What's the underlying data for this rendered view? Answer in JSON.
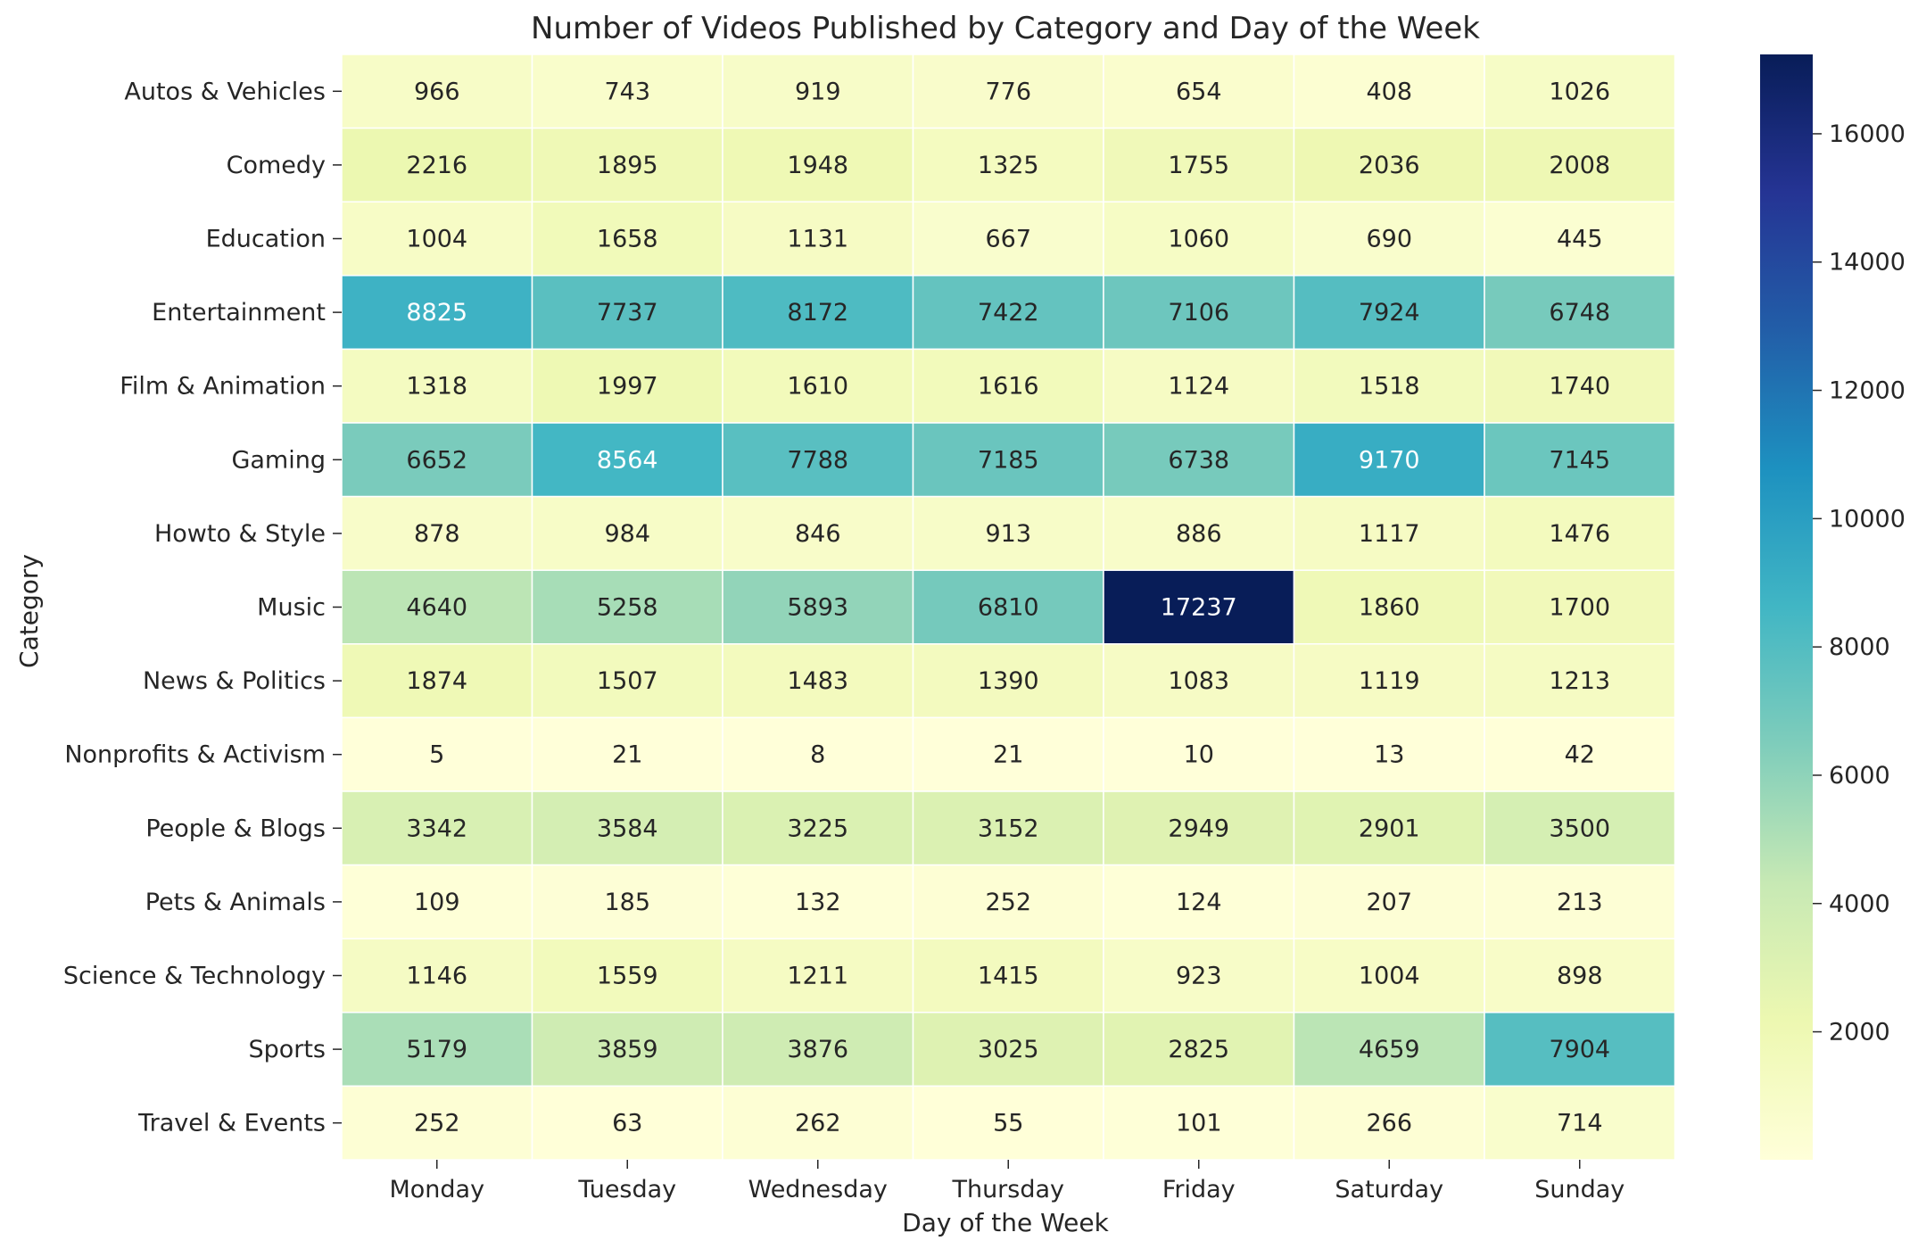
{
  "chart_data": {
    "type": "heatmap",
    "title": "Number of Videos Published by Category and Day of the Week",
    "xlabel": "Day of the Week",
    "ylabel": "Category",
    "x": [
      "Monday",
      "Tuesday",
      "Wednesday",
      "Thursday",
      "Friday",
      "Saturday",
      "Sunday"
    ],
    "y": [
      "Autos & Vehicles",
      "Comedy",
      "Education",
      "Entertainment",
      "Film & Animation",
      "Gaming",
      "Howto & Style",
      "Music",
      "News & Politics",
      "Nonprofits & Activism",
      "People & Blogs",
      "Pets & Animals",
      "Science & Technology",
      "Sports",
      "Travel & Events"
    ],
    "values": [
      [
        966,
        743,
        919,
        776,
        654,
        408,
        1026
      ],
      [
        2216,
        1895,
        1948,
        1325,
        1755,
        2036,
        2008
      ],
      [
        1004,
        1658,
        1131,
        667,
        1060,
        690,
        445
      ],
      [
        8825,
        7737,
        8172,
        7422,
        7106,
        7924,
        6748
      ],
      [
        1318,
        1997,
        1610,
        1616,
        1124,
        1518,
        1740
      ],
      [
        6652,
        8564,
        7788,
        7185,
        6738,
        9170,
        7145
      ],
      [
        878,
        984,
        846,
        913,
        886,
        1117,
        1476
      ],
      [
        4640,
        5258,
        5893,
        6810,
        17237,
        1860,
        1700
      ],
      [
        1874,
        1507,
        1483,
        1390,
        1083,
        1119,
        1213
      ],
      [
        5,
        21,
        8,
        21,
        10,
        13,
        42
      ],
      [
        3342,
        3584,
        3225,
        3152,
        2949,
        2901,
        3500
      ],
      [
        109,
        185,
        132,
        252,
        124,
        207,
        213
      ],
      [
        1146,
        1559,
        1211,
        1415,
        923,
        1004,
        898
      ],
      [
        5179,
        3859,
        3876,
        3025,
        2825,
        4659,
        7904
      ],
      [
        252,
        63,
        262,
        55,
        101,
        266,
        714
      ]
    ],
    "colormap": "YlGnBu",
    "vmin": 5,
    "vmax": 17237,
    "annotated": true,
    "colorbar": {
      "ticks": [
        2000,
        4000,
        6000,
        8000,
        10000,
        12000,
        14000,
        16000
      ],
      "labels": [
        "2000",
        "4000",
        "6000",
        "8000",
        "10000",
        "12000",
        "14000",
        "16000"
      ]
    },
    "legend": "colorbar-right",
    "colors": {
      "ylgnbu": [
        "#ffffd9",
        "#edf8b1",
        "#c7e9b4",
        "#7fcdbb",
        "#41b6c4",
        "#1d91c0",
        "#225ea8",
        "#253494",
        "#081d58"
      ],
      "text_dark": "#262626",
      "text_light": "#ffffff",
      "cell_border": "#ffffff"
    }
  }
}
